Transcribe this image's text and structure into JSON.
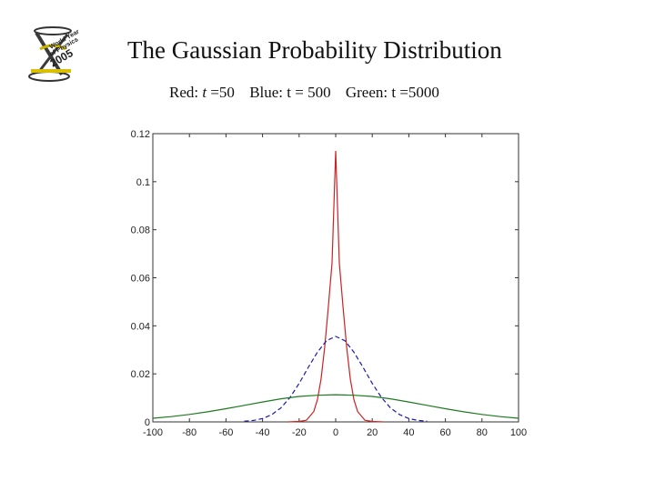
{
  "slide": {
    "title": "The Gaussian Probability Distribution",
    "subtitle": {
      "red_prefix": "Red: ",
      "red_var": "t",
      "red_value": " =50",
      "blue": "Blue: t = 500",
      "green": "Green: t =5000"
    },
    "logo": {
      "icon": "world-year-of-physics-2005-logo",
      "texts": [
        "World Year",
        "of Physics",
        "2005"
      ]
    }
  },
  "colors": {
    "red": "#cc2222",
    "blue": "#1a1ab0",
    "green": "#1e7a1e",
    "axis": "#333333"
  },
  "chart_data": {
    "type": "line",
    "title": "",
    "xlabel": "",
    "ylabel": "",
    "xlim": [
      -100,
      100
    ],
    "ylim": [
      0,
      0.12
    ],
    "x_ticks": [
      -100,
      -80,
      -60,
      -40,
      -20,
      0,
      20,
      40,
      60,
      80,
      100
    ],
    "y_ticks": [
      0,
      0.02,
      0.04,
      0.06,
      0.08,
      0.1,
      0.12
    ],
    "y_tick_labels": [
      "0",
      "0.02",
      "0.04",
      "0.06",
      "0.08",
      "0.1",
      "0.12"
    ],
    "grid": false,
    "legend": "none",
    "series": [
      {
        "color": "red",
        "dash": "solid",
        "x": [
          -26,
          -20,
          -16,
          -12,
          -10,
          -8,
          -6,
          -4,
          -2,
          0,
          2,
          4,
          6,
          8,
          10,
          12,
          16,
          20,
          26
        ],
        "y": [
          0,
          0.0002,
          0.0007,
          0.0043,
          0.0092,
          0.0178,
          0.031,
          0.0482,
          0.0662,
          0.1128,
          0.0662,
          0.0482,
          0.031,
          0.0178,
          0.0092,
          0.0043,
          0.0007,
          0.0002,
          0
        ]
      },
      {
        "color": "blue",
        "dash": "dashed",
        "x": [
          -50,
          -45,
          -40,
          -35,
          -30,
          -25,
          -20,
          -15,
          -10,
          -5,
          0,
          5,
          10,
          15,
          20,
          25,
          30,
          35,
          40,
          45,
          50
        ],
        "y": [
          0.0003,
          0.0006,
          0.0014,
          0.003,
          0.0058,
          0.0102,
          0.016,
          0.0227,
          0.029,
          0.0338,
          0.0356,
          0.0338,
          0.029,
          0.0227,
          0.016,
          0.0102,
          0.0058,
          0.003,
          0.0014,
          0.0006,
          0.0003
        ]
      },
      {
        "color": "green",
        "dash": "solid",
        "x": [
          -100,
          -90,
          -80,
          -70,
          -60,
          -50,
          -40,
          -30,
          -20,
          -10,
          0,
          10,
          20,
          30,
          40,
          50,
          60,
          70,
          80,
          90,
          100
        ],
        "y": [
          0.0015,
          0.0022,
          0.0031,
          0.0042,
          0.0055,
          0.0069,
          0.0083,
          0.0096,
          0.0106,
          0.0111,
          0.0113,
          0.0111,
          0.0106,
          0.0096,
          0.0083,
          0.0069,
          0.0055,
          0.0042,
          0.0031,
          0.0022,
          0.0015
        ]
      }
    ]
  }
}
